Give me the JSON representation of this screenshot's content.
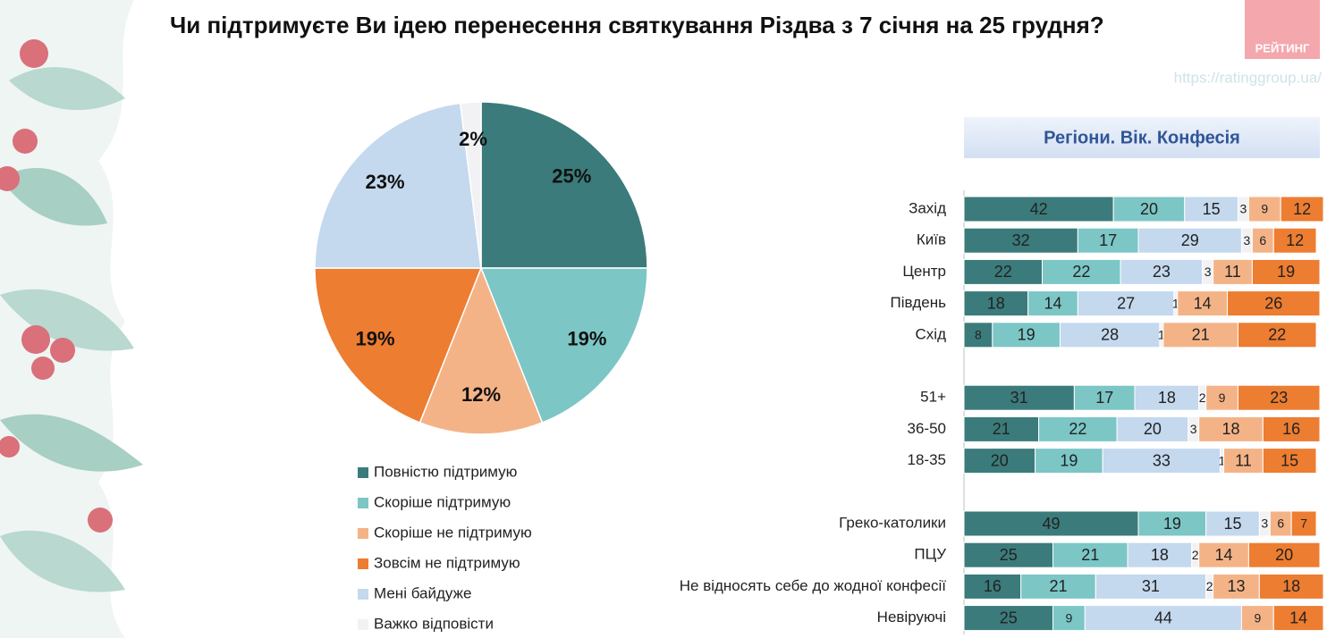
{
  "chart_data": [
    {
      "type": "pie",
      "title": "Чи підтримуєте Ви ідею перенесення святкування Різдва з 7 січня на 25 грудня?",
      "series": [
        {
          "name": "Повністю підтримую",
          "color": "#3b7b7b",
          "values": [
            25
          ],
          "value_labels": [
            "25%"
          ]
        },
        {
          "name": "Скоріше підтримую",
          "color": "#7cc6c6",
          "values": [
            19
          ],
          "value_labels": [
            "19%"
          ]
        },
        {
          "name": "Скоріше не підтримую",
          "color": "#f4b387",
          "values": [
            12
          ],
          "value_labels": [
            "12%"
          ]
        },
        {
          "name": "Зовсім не підтримую",
          "color": "#ed7d31",
          "values": [
            19
          ],
          "value_labels": [
            "19%"
          ]
        },
        {
          "name": "Мені байдуже",
          "color": "#c4d8ee",
          "values": [
            23
          ],
          "value_labels": [
            "23%"
          ]
        },
        {
          "name": "Важко відповісти",
          "color": "#f2f2f4",
          "values": [
            2
          ],
          "value_labels": [
            "2%"
          ]
        }
      ]
    },
    {
      "type": "stacked-bar",
      "title": "Регіони. Вік. Конфесія",
      "brand": "РЕЙТИНГ",
      "url": "https://ratinggroup.ua/",
      "categories": [
        "Захід",
        "Київ",
        "Центр",
        "Південь",
        "Схід",
        null,
        "51+",
        "36-50",
        "18-35",
        null,
        "Греко-католики",
        "ПЦУ",
        "Не відносять себе до жодної конфесії",
        "Невіруючі"
      ],
      "xlim": [
        0,
        100
      ],
      "series": [
        {
          "color": "#3b7b7b",
          "values": [
            42,
            32,
            22,
            18,
            8,
            null,
            31,
            21,
            20,
            null,
            49,
            25,
            16,
            25
          ]
        },
        {
          "color": "#7cc6c6",
          "values": [
            20,
            17,
            22,
            14,
            19,
            null,
            17,
            22,
            19,
            null,
            19,
            21,
            21,
            9
          ]
        },
        {
          "color": "#c4d8ee",
          "values": [
            15,
            29,
            23,
            27,
            28,
            null,
            18,
            20,
            33,
            null,
            15,
            18,
            31,
            44
          ]
        },
        {
          "color": "#f2f2f4",
          "values": [
            3,
            3,
            3,
            1,
            1,
            null,
            2,
            3,
            1,
            null,
            3,
            2,
            2,
            null
          ]
        },
        {
          "color": "#f4b387",
          "values": [
            9,
            6,
            11,
            14,
            21,
            null,
            9,
            18,
            11,
            null,
            6,
            14,
            13,
            9
          ]
        },
        {
          "color": "#ed7d31",
          "values": [
            12,
            12,
            19,
            26,
            22,
            null,
            23,
            16,
            15,
            null,
            7,
            20,
            18,
            14
          ]
        }
      ]
    }
  ]
}
